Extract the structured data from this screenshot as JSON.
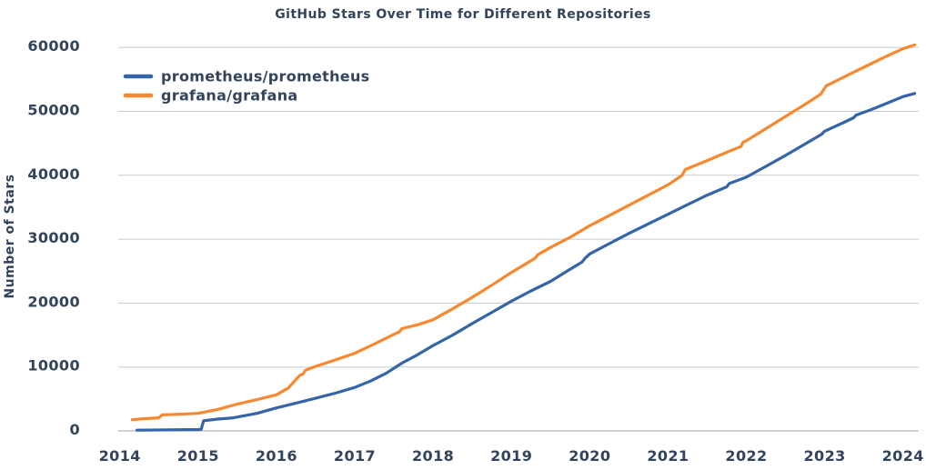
{
  "chart_data": {
    "type": "line",
    "title": "GitHub Stars Over Time for Different Repositories",
    "xlabel": "",
    "ylabel": "Number of Stars",
    "xlim": [
      2013.85,
      2024.3
    ],
    "ylim": [
      0,
      60000
    ],
    "xticks": [
      2014,
      2015,
      2016,
      2017,
      2018,
      2019,
      2020,
      2021,
      2022,
      2023,
      2024
    ],
    "yticks": [
      0,
      10000,
      20000,
      30000,
      40000,
      50000,
      60000
    ],
    "grid": "horizontal",
    "legend_position": "top-left-inside",
    "series": [
      {
        "name": "prometheus/prometheus",
        "color": "#3465A8",
        "points": [
          [
            2014.22,
            120
          ],
          [
            2014.6,
            160
          ],
          [
            2015.0,
            220
          ],
          [
            2015.04,
            260
          ],
          [
            2015.07,
            1600
          ],
          [
            2015.25,
            1850
          ],
          [
            2015.45,
            2050
          ],
          [
            2015.75,
            2750
          ],
          [
            2016.0,
            3600
          ],
          [
            2016.25,
            4350
          ],
          [
            2016.5,
            5100
          ],
          [
            2016.75,
            5900
          ],
          [
            2017.0,
            6800
          ],
          [
            2017.2,
            7800
          ],
          [
            2017.4,
            9000
          ],
          [
            2017.6,
            10600
          ],
          [
            2017.8,
            11900
          ],
          [
            2018.0,
            13350
          ],
          [
            2018.25,
            15000
          ],
          [
            2018.5,
            16800
          ],
          [
            2018.75,
            18550
          ],
          [
            2019.0,
            20300
          ],
          [
            2019.25,
            21900
          ],
          [
            2019.5,
            23400
          ],
          [
            2019.75,
            25300
          ],
          [
            2019.9,
            26400
          ],
          [
            2019.94,
            27000
          ],
          [
            2020.0,
            27700
          ],
          [
            2020.25,
            29300
          ],
          [
            2020.5,
            30900
          ],
          [
            2020.75,
            32400
          ],
          [
            2021.0,
            33900
          ],
          [
            2021.25,
            35400
          ],
          [
            2021.5,
            36900
          ],
          [
            2021.75,
            38200
          ],
          [
            2021.78,
            38700
          ],
          [
            2022.0,
            39700
          ],
          [
            2022.25,
            41400
          ],
          [
            2022.5,
            43100
          ],
          [
            2022.75,
            44900
          ],
          [
            2022.96,
            46400
          ],
          [
            2023.0,
            46900
          ],
          [
            2023.25,
            48300
          ],
          [
            2023.37,
            49000
          ],
          [
            2023.4,
            49400
          ],
          [
            2023.6,
            50300
          ],
          [
            2023.8,
            51300
          ],
          [
            2024.0,
            52300
          ],
          [
            2024.15,
            52800
          ]
        ]
      },
      {
        "name": "grafana/grafana",
        "color": "#F7882F",
        "points": [
          [
            2014.16,
            1750
          ],
          [
            2014.3,
            1900
          ],
          [
            2014.5,
            2050
          ],
          [
            2014.54,
            2500
          ],
          [
            2014.75,
            2600
          ],
          [
            2015.0,
            2750
          ],
          [
            2015.25,
            3350
          ],
          [
            2015.5,
            4200
          ],
          [
            2015.75,
            4900
          ],
          [
            2016.0,
            5650
          ],
          [
            2016.15,
            6700
          ],
          [
            2016.3,
            8700
          ],
          [
            2016.34,
            8900
          ],
          [
            2016.37,
            9500
          ],
          [
            2016.5,
            10100
          ],
          [
            2016.75,
            11100
          ],
          [
            2017.0,
            12150
          ],
          [
            2017.25,
            13600
          ],
          [
            2017.5,
            15100
          ],
          [
            2017.57,
            15500
          ],
          [
            2017.6,
            16000
          ],
          [
            2017.8,
            16600
          ],
          [
            2018.0,
            17400
          ],
          [
            2018.25,
            19100
          ],
          [
            2018.5,
            20900
          ],
          [
            2018.75,
            22800
          ],
          [
            2019.0,
            24800
          ],
          [
            2019.3,
            27000
          ],
          [
            2019.34,
            27600
          ],
          [
            2019.5,
            28700
          ],
          [
            2019.75,
            30300
          ],
          [
            2020.0,
            32100
          ],
          [
            2020.25,
            33700
          ],
          [
            2020.5,
            35300
          ],
          [
            2020.75,
            36900
          ],
          [
            2021.0,
            38500
          ],
          [
            2021.18,
            40000
          ],
          [
            2021.22,
            40900
          ],
          [
            2021.5,
            42300
          ],
          [
            2021.75,
            43600
          ],
          [
            2021.93,
            44500
          ],
          [
            2021.96,
            45200
          ],
          [
            2022.0,
            45400
          ],
          [
            2022.25,
            47300
          ],
          [
            2022.5,
            49200
          ],
          [
            2022.75,
            51100
          ],
          [
            2022.95,
            52700
          ],
          [
            2023.02,
            54000
          ],
          [
            2023.25,
            55400
          ],
          [
            2023.5,
            56900
          ],
          [
            2023.75,
            58400
          ],
          [
            2024.0,
            59800
          ],
          [
            2024.15,
            60400
          ]
        ]
      }
    ]
  }
}
